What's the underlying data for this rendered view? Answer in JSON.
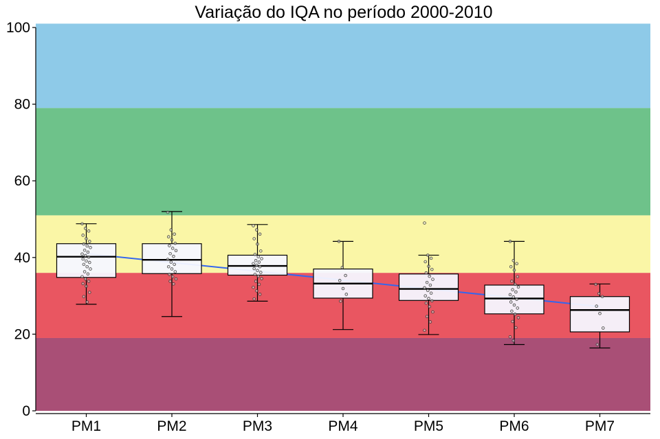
{
  "chart_data": {
    "type": "boxplot",
    "title": "Variação do IQA no período 2000-2010",
    "xlabel": "",
    "ylabel": "",
    "ylim": [
      0,
      100
    ],
    "yticks": [
      0,
      20,
      40,
      60,
      80,
      100
    ],
    "grid": false,
    "legend": "none",
    "categories": [
      "PM1",
      "PM2",
      "PM3",
      "PM4",
      "PM5",
      "PM6",
      "PM7"
    ],
    "quality_bands": [
      {
        "from": 0,
        "to": 19,
        "color": "#A94F76"
      },
      {
        "from": 19,
        "to": 36,
        "color": "#E95661"
      },
      {
        "from": 36,
        "to": 51,
        "color": "#FAF6A6"
      },
      {
        "from": 51,
        "to": 79,
        "color": "#6EC28A"
      },
      {
        "from": 79,
        "to": 101,
        "color": "#8ECAE8"
      }
    ],
    "boxes": [
      {
        "category": "PM1",
        "min": 27.8,
        "q1": 34.8,
        "median": 40.2,
        "q3": 43.6,
        "max": 48.8
      },
      {
        "category": "PM2",
        "min": 24.6,
        "q1": 35.8,
        "median": 39.4,
        "q3": 43.6,
        "max": 52.0
      },
      {
        "category": "PM3",
        "min": 28.6,
        "q1": 35.4,
        "median": 37.8,
        "q3": 40.6,
        "max": 48.6
      },
      {
        "category": "PM4",
        "min": 21.2,
        "q1": 29.4,
        "median": 33.2,
        "q3": 37.0,
        "max": 44.2
      },
      {
        "category": "PM5",
        "min": 19.9,
        "q1": 28.8,
        "median": 31.8,
        "q3": 35.7,
        "max": 40.6
      },
      {
        "category": "PM6",
        "min": 17.3,
        "q1": 25.3,
        "median": 29.3,
        "q3": 32.8,
        "max": 44.2
      },
      {
        "category": "PM7",
        "min": 16.4,
        "q1": 20.6,
        "median": 26.3,
        "q3": 29.8,
        "max": 33.1
      }
    ],
    "trend_line": {
      "color": "#3366EE",
      "start": {
        "x": "PM1",
        "y": 41.0
      },
      "end": {
        "x": "PM7",
        "y": 27.2
      }
    },
    "points": [
      {
        "category": "PM1",
        "values": [
          48.8,
          47.6,
          46.9,
          45.8,
          44.9,
          44.2,
          43.5,
          43.0,
          42.6,
          41.9,
          41.4,
          40.9,
          40.5,
          40.1,
          39.6,
          39.1,
          38.7,
          38.2,
          37.6,
          37.0,
          36.3,
          35.7,
          35.0,
          34.4,
          33.8,
          33.2,
          32.5,
          30.9,
          29.8,
          28.4
        ]
      },
      {
        "category": "PM2",
        "values": [
          51.8,
          47.2,
          46.1,
          45.4,
          44.6,
          43.7,
          43.1,
          42.4,
          41.8,
          41.0,
          40.3,
          39.5,
          38.8,
          38.2,
          37.6,
          37.0,
          36.3,
          35.6,
          35.0,
          34.4,
          33.8,
          33.1
        ]
      },
      {
        "category": "PM3",
        "values": [
          48.3,
          47.2,
          46.1,
          44.9,
          43.5,
          41.7,
          40.8,
          40.2,
          39.7,
          39.2,
          38.8,
          38.4,
          38.0,
          37.6,
          37.1,
          36.6,
          36.1,
          35.6,
          35.1,
          34.5,
          33.8,
          33.0,
          32.2,
          31.3,
          30.4,
          29.2
        ]
      },
      {
        "category": "PM4",
        "values": [
          44.2,
          37.4,
          35.3,
          34.0,
          31.9,
          30.4,
          28.6
        ]
      },
      {
        "category": "PM5",
        "values": [
          49.0,
          40.6,
          39.8,
          38.9,
          37.7,
          36.9,
          36.0,
          35.1,
          34.3,
          33.5,
          32.8,
          32.1,
          31.4,
          30.7,
          30.0,
          29.3,
          28.7,
          28.1,
          27.2,
          25.8,
          24.6,
          23.2,
          21.0
        ]
      },
      {
        "category": "PM6",
        "values": [
          44.2,
          39.2,
          38.4,
          37.6,
          36.7,
          35.0,
          33.8,
          33.0,
          32.3,
          31.6,
          31.0,
          30.3,
          29.7,
          29.1,
          28.4,
          27.6,
          26.8,
          26.0,
          25.2,
          24.3,
          23.3,
          21.7,
          19.3,
          18.3
        ]
      },
      {
        "category": "PM7",
        "values": [
          33.0,
          30.6,
          29.8,
          27.3,
          25.4,
          21.6,
          17.3
        ]
      }
    ]
  }
}
